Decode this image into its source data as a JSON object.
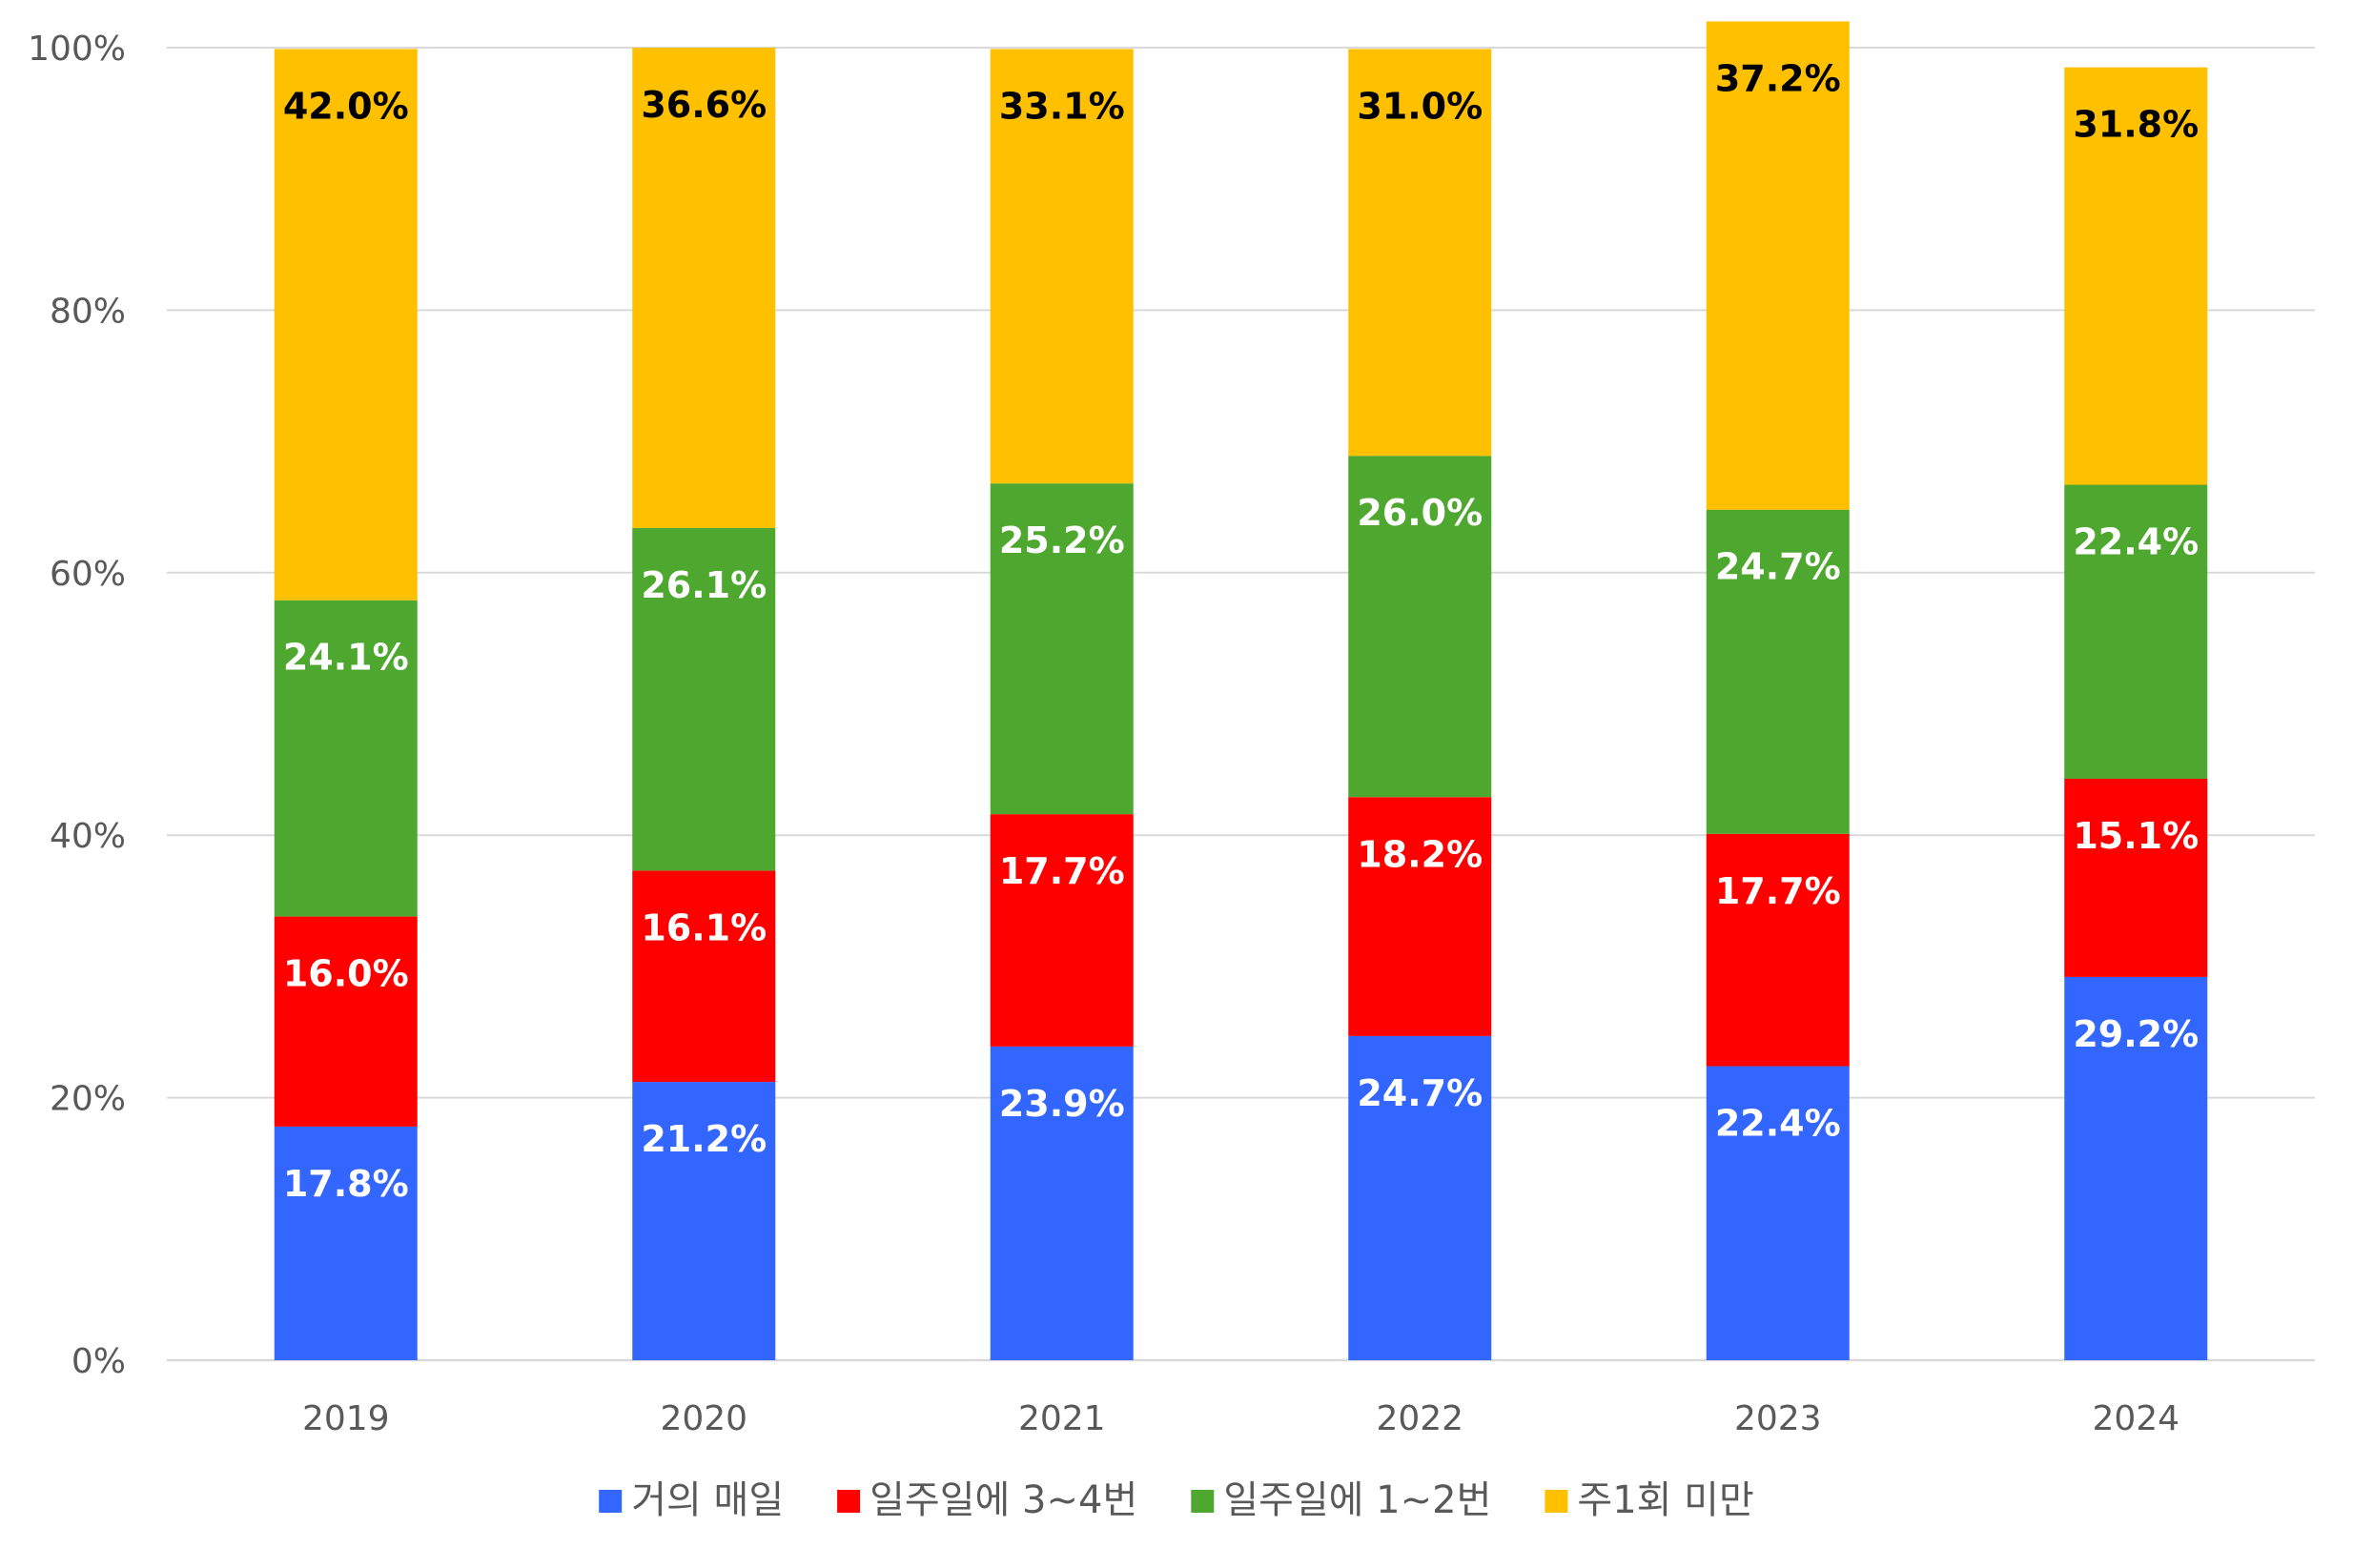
{
  "chart_data": {
    "type": "bar",
    "stacked": true,
    "categories": [
      "2019",
      "2020",
      "2021",
      "2022",
      "2023",
      "2024"
    ],
    "series": [
      {
        "name": "거의 매일",
        "color": "#3366FF",
        "label_color": "#FFFFFF",
        "values": [
          17.8,
          21.2,
          23.9,
          24.7,
          22.4,
          29.2
        ],
        "labels": [
          "17.8%",
          "21.2%",
          "23.9%",
          "24.7%",
          "22.4%",
          "29.2%"
        ]
      },
      {
        "name": "일주일에 3~4번",
        "color": "#FF0000",
        "label_color": "#FFFFFF",
        "values": [
          16.0,
          16.1,
          17.7,
          18.2,
          17.7,
          15.1
        ],
        "labels": [
          "16.0%",
          "16.1%",
          "17.7%",
          "18.2%",
          "17.7%",
          "15.1%"
        ]
      },
      {
        "name": "일주일에 1~2번",
        "color": "#4EA72E",
        "label_color": "#FFFFFF",
        "values": [
          24.1,
          26.1,
          25.2,
          26.0,
          24.7,
          22.4
        ],
        "labels": [
          "24.1%",
          "26.1%",
          "25.2%",
          "26.0%",
          "24.7%",
          "22.4%"
        ]
      },
      {
        "name": "주1회 미만",
        "color": "#FFC000",
        "label_color": "#000000",
        "values": [
          42.0,
          36.6,
          33.1,
          31.0,
          37.2,
          31.8
        ],
        "labels": [
          "42.0%",
          "36.6%",
          "33.1%",
          "31.0%",
          "37.2%",
          "31.8%"
        ]
      }
    ],
    "title": "",
    "xlabel": "",
    "ylabel": "",
    "ylim": [
      0,
      100
    ],
    "yticks": [
      "0%",
      "20%",
      "40%",
      "60%",
      "80%",
      "100%"
    ],
    "grid": true,
    "legend_position": "bottom",
    "gridline_color": "#D9D9D9",
    "tick_color": "#595959"
  }
}
